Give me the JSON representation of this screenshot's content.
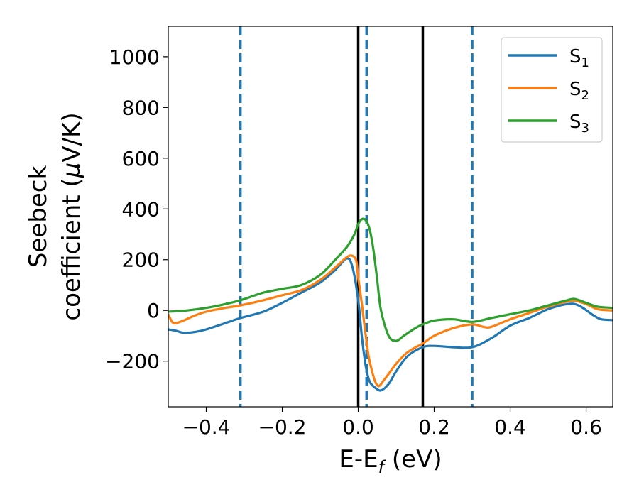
{
  "chart_data": {
    "type": "line",
    "title": "",
    "xlabel": "E-E",
    "xlabel_sub": "f",
    "xlabel_unit": " (eV)",
    "ylabel_line1": "Seebeck",
    "ylabel_line2": "coefficient  (",
    "ylabel_mu": "μ",
    "ylabel_end": "V/K)",
    "xlim": [
      -0.5,
      0.67
    ],
    "ylim": [
      -380,
      1120
    ],
    "x_ticks": [
      -0.4,
      -0.2,
      0.0,
      0.2,
      0.4,
      0.6
    ],
    "x_tick_labels": [
      "−0.4",
      "−0.2",
      "0.0",
      "0.2",
      "0.4",
      "0.6"
    ],
    "y_ticks": [
      -200,
      0,
      200,
      400,
      600,
      800,
      1000
    ],
    "y_tick_labels": [
      "−200",
      "0",
      "200",
      "400",
      "600",
      "800",
      "1000"
    ],
    "grid": false,
    "legend_position": "top-right",
    "vertical_lines": [
      {
        "x": -0.31,
        "style": "dashed",
        "color": "#1f77b4"
      },
      {
        "x": 0.0,
        "style": "solid",
        "color": "#000000"
      },
      {
        "x": 0.022,
        "style": "dashed",
        "color": "#1f77b4"
      },
      {
        "x": 0.17,
        "style": "solid",
        "color": "#000000"
      },
      {
        "x": 0.3,
        "style": "dashed",
        "color": "#1f77b4"
      }
    ],
    "series": [
      {
        "name": "S",
        "sub": "1",
        "color": "#1f77b4",
        "x": [
          -0.5,
          -0.48,
          -0.46,
          -0.43,
          -0.4,
          -0.35,
          -0.31,
          -0.25,
          -0.2,
          -0.15,
          -0.1,
          -0.06,
          -0.03,
          -0.015,
          0.0,
          0.01,
          0.02,
          0.03,
          0.045,
          0.06,
          0.08,
          0.1,
          0.13,
          0.17,
          0.2,
          0.25,
          0.3,
          0.35,
          0.4,
          0.45,
          0.5,
          0.55,
          0.58,
          0.62,
          0.64,
          0.67
        ],
        "y": [
          -75,
          -80,
          -88,
          -85,
          -75,
          -50,
          -30,
          -5,
          30,
          70,
          110,
          160,
          205,
          170,
          40,
          -110,
          -220,
          -280,
          -305,
          -315,
          -290,
          -240,
          -180,
          -145,
          -140,
          -145,
          -145,
          -110,
          -60,
          -30,
          5,
          25,
          20,
          -20,
          -35,
          -38
        ]
      },
      {
        "name": "S",
        "sub": "2",
        "color": "#ff7f0e",
        "x": [
          -0.5,
          -0.49,
          -0.48,
          -0.46,
          -0.43,
          -0.4,
          -0.35,
          -0.31,
          -0.25,
          -0.2,
          -0.15,
          -0.1,
          -0.06,
          -0.03,
          -0.015,
          -0.005,
          0.0,
          0.01,
          0.02,
          0.03,
          0.05,
          0.07,
          0.1,
          0.13,
          0.17,
          0.2,
          0.25,
          0.3,
          0.33,
          0.35,
          0.4,
          0.45,
          0.5,
          0.55,
          0.57,
          0.6,
          0.63,
          0.67
        ],
        "y": [
          -15,
          -45,
          -50,
          -40,
          -20,
          -5,
          10,
          20,
          40,
          60,
          80,
          120,
          170,
          210,
          215,
          195,
          130,
          20,
          -100,
          -200,
          -295,
          -270,
          -210,
          -165,
          -130,
          -100,
          -70,
          -55,
          -65,
          -65,
          -35,
          -10,
          15,
          35,
          38,
          25,
          5,
          0
        ]
      },
      {
        "name": "S",
        "sub": "3",
        "color": "#2ca02c",
        "x": [
          -0.5,
          -0.45,
          -0.4,
          -0.35,
          -0.31,
          -0.25,
          -0.2,
          -0.15,
          -0.1,
          -0.06,
          -0.03,
          -0.01,
          0.0,
          0.01,
          0.02,
          0.03,
          0.04,
          0.05,
          0.06,
          0.08,
          0.1,
          0.12,
          0.15,
          0.17,
          0.2,
          0.25,
          0.3,
          0.35,
          0.4,
          0.45,
          0.5,
          0.55,
          0.57,
          0.6,
          0.63,
          0.67
        ],
        "y": [
          -5,
          0,
          10,
          25,
          40,
          70,
          85,
          100,
          140,
          200,
          250,
          300,
          340,
          360,
          355,
          320,
          240,
          120,
          0,
          -100,
          -120,
          -100,
          -70,
          -55,
          -40,
          -35,
          -45,
          -30,
          -15,
          0,
          20,
          40,
          45,
          30,
          15,
          10
        ]
      }
    ]
  }
}
